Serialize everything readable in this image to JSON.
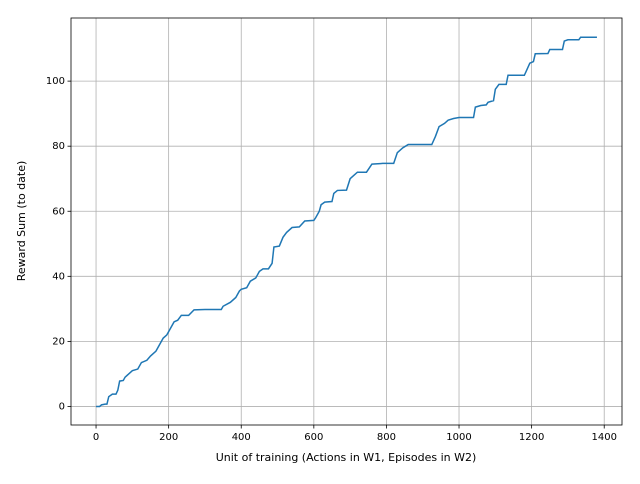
{
  "chart_data": {
    "type": "line",
    "x_label": "Unit of training (Actions in W1, Episodes in W2)",
    "y_label": "Reward Sum (to date)",
    "grid": true,
    "xlim": [
      -69,
      1449
    ],
    "ylim": [
      -5.7,
      119.4
    ],
    "xticks": [
      0,
      200,
      400,
      600,
      800,
      1000,
      1200,
      1400
    ],
    "yticks": [
      0,
      20,
      40,
      60,
      80,
      100
    ],
    "series": [
      {
        "color": "#1f77b4",
        "x": [
          0,
          10,
          15,
          25,
          30,
          35,
          45,
          55,
          60,
          65,
          75,
          80,
          90,
          100,
          115,
          125,
          140,
          150,
          165,
          175,
          185,
          195,
          205,
          215,
          225,
          235,
          255,
          270,
          300,
          345,
          350,
          370,
          385,
          395,
          400,
          415,
          425,
          440,
          450,
          460,
          475,
          485,
          490,
          505,
          515,
          525,
          540,
          560,
          575,
          600,
          605,
          615,
          620,
          630,
          650,
          655,
          665,
          690,
          700,
          710,
          720,
          745,
          760,
          790,
          820,
          830,
          845,
          860,
          900,
          925,
          935,
          945,
          960,
          970,
          985,
          1000,
          1040,
          1045,
          1060,
          1075,
          1080,
          1095,
          1100,
          1110,
          1130,
          1135,
          1180,
          1185,
          1195,
          1205,
          1210,
          1245,
          1250,
          1285,
          1290,
          1300,
          1330,
          1335,
          1380
        ],
        "values": [
          0,
          0,
          0.5,
          0.7,
          0.7,
          3,
          3.8,
          3.8,
          5,
          7.8,
          8,
          9,
          10,
          11,
          11.5,
          13.5,
          14.2,
          15.5,
          17,
          19,
          21,
          22,
          24,
          26,
          26.5,
          28,
          28,
          29.7,
          29.8,
          29.8,
          30.8,
          32,
          33.5,
          35.5,
          36,
          36.5,
          38.5,
          39.5,
          41.5,
          42.3,
          42.3,
          44,
          49,
          49.3,
          52,
          53.5,
          55,
          55.2,
          57,
          57.2,
          58,
          60,
          62,
          62.8,
          63,
          65.5,
          66.4,
          66.5,
          70,
          71,
          72,
          72,
          74.5,
          74.7,
          74.7,
          78,
          79.5,
          80.5,
          80.5,
          80.5,
          83,
          86,
          87,
          88,
          88.5,
          88.8,
          88.8,
          92,
          92.5,
          92.7,
          93.5,
          94,
          97.5,
          99,
          99,
          101.8,
          101.8,
          103,
          105.5,
          106,
          108.4,
          108.5,
          109.7,
          109.7,
          112.3,
          112.7,
          112.7,
          113.5,
          113.5
        ]
      }
    ]
  }
}
